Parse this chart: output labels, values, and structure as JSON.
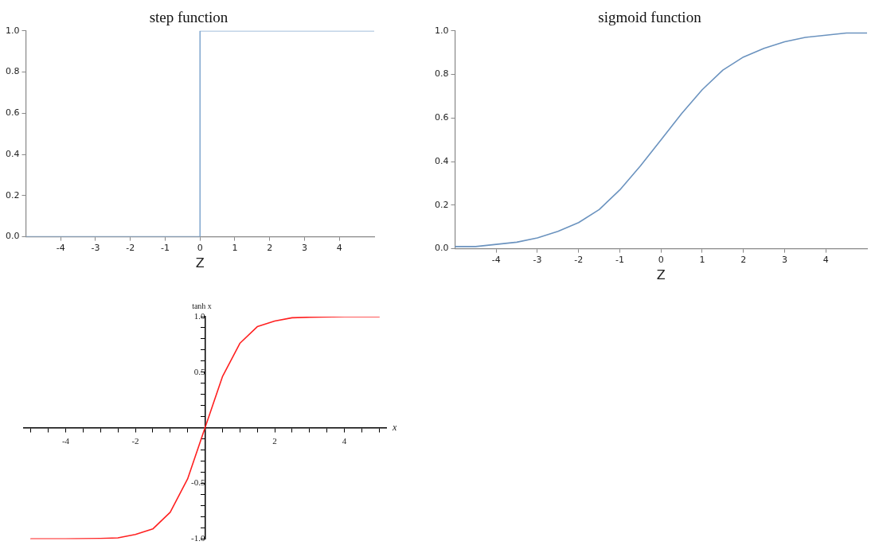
{
  "chart_data": [
    {
      "type": "step",
      "title": "step function",
      "xlabel": "Z",
      "x": [
        -5,
        0,
        5
      ],
      "values": [
        0,
        1,
        1
      ],
      "color": "#85aad0",
      "xlim": [
        -5,
        5
      ],
      "xticks": [
        -4,
        -3,
        -2,
        -1,
        0,
        1,
        2,
        3,
        4
      ],
      "ylim": [
        0,
        1
      ],
      "yticks": [
        {
          "value": 0,
          "label": "0.0"
        },
        0.2,
        0.4,
        0.6,
        0.8,
        {
          "value": 1,
          "label": "1.0"
        }
      ],
      "grid": false,
      "legend": false,
      "marker": "none"
    },
    {
      "type": "line",
      "title": "sigmoid function",
      "xlabel": "Z",
      "x": [
        -5,
        -4.5,
        -4,
        -3.5,
        -3,
        -2.5,
        -2,
        -1.5,
        -1,
        -0.5,
        0,
        0.5,
        1,
        1.5,
        2,
        2.5,
        3,
        3.5,
        4,
        4.5,
        5
      ],
      "values": [
        0.01,
        0.01,
        0.02,
        0.03,
        0.05,
        0.08,
        0.12,
        0.18,
        0.27,
        0.38,
        0.5,
        0.62,
        0.73,
        0.82,
        0.88,
        0.92,
        0.95,
        0.97,
        0.98,
        0.99,
        0.99
      ],
      "color": "#6b93bf",
      "xlim": [
        -5,
        5
      ],
      "xticks": [
        -4,
        -3,
        -2,
        -1,
        0,
        1,
        2,
        3,
        4
      ],
      "ylim": [
        0,
        1
      ],
      "yticks": [
        {
          "value": 0,
          "label": "0.0"
        },
        0.2,
        0.4,
        0.6,
        0.8,
        {
          "value": 1,
          "label": "1.0"
        }
      ],
      "grid": false,
      "legend": false,
      "marker": "none"
    },
    {
      "type": "line",
      "xlabel": "x",
      "ylabel": "tanh x",
      "x": [
        -5,
        -4,
        -3,
        -2.5,
        -2,
        -1.5,
        -1,
        -0.5,
        0,
        0.5,
        1,
        1.5,
        2,
        2.5,
        3,
        4,
        5
      ],
      "values": [
        -1,
        -1,
        -0.995,
        -0.99,
        -0.96,
        -0.91,
        -0.76,
        -0.46,
        0,
        0.46,
        0.76,
        0.91,
        0.96,
        0.99,
        0.995,
        1,
        1
      ],
      "color": "#ff2020",
      "xlim": [
        -5.2,
        5.2
      ],
      "xticks": [
        {
          "value": -5,
          "label": null
        },
        {
          "value": -4.5,
          "label": null
        },
        -4,
        {
          "value": -3.5,
          "label": null
        },
        {
          "value": -3,
          "label": null
        },
        {
          "value": -2.5,
          "label": null
        },
        -2,
        {
          "value": -1.5,
          "label": null
        },
        {
          "value": -1,
          "label": null
        },
        {
          "value": -0.5,
          "label": null
        },
        {
          "value": 0.5,
          "label": null
        },
        {
          "value": 1,
          "label": null
        },
        {
          "value": 1.5,
          "label": null
        },
        2,
        {
          "value": 2.5,
          "label": null
        },
        {
          "value": 3,
          "label": null
        },
        {
          "value": 3.5,
          "label": null
        },
        4,
        {
          "value": 4.5,
          "label": null
        },
        {
          "value": 5,
          "label": null
        }
      ],
      "ylim": [
        -1,
        1
      ],
      "yticks": [
        {
          "value": -1,
          "label": "-1.0"
        },
        {
          "value": -0.9,
          "label": null
        },
        {
          "value": -0.8,
          "label": null
        },
        {
          "value": -0.7,
          "label": null
        },
        {
          "value": -0.6,
          "label": null
        },
        -0.5,
        {
          "value": -0.4,
          "label": null
        },
        {
          "value": -0.3,
          "label": null
        },
        {
          "value": -0.2,
          "label": null
        },
        {
          "value": -0.1,
          "label": null
        },
        {
          "value": 0.1,
          "label": null
        },
        {
          "value": 0.2,
          "label": null
        },
        {
          "value": 0.3,
          "label": null
        },
        {
          "value": 0.4,
          "label": null
        },
        0.5,
        {
          "value": 0.6,
          "label": null
        },
        {
          "value": 0.7,
          "label": null
        },
        {
          "value": 0.8,
          "label": null
        },
        {
          "value": 0.9,
          "label": null
        },
        {
          "value": 1,
          "label": "1.0"
        }
      ],
      "grid": false,
      "legend": false,
      "marker": "none"
    }
  ]
}
